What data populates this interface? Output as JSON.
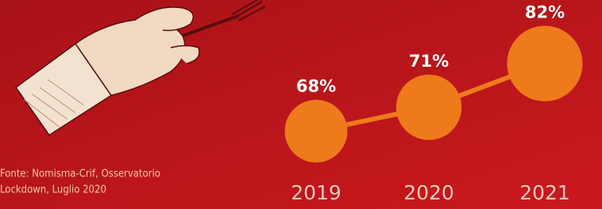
{
  "chart_data": {
    "type": "bubble",
    "categories": [
      "2019",
      "2020",
      "2021"
    ],
    "values": [
      68,
      71,
      82
    ],
    "value_labels": [
      "68%",
      "71%",
      "82%"
    ],
    "color": "#ee7a1c",
    "source": [
      "Fonte: Nomisma-Crif, Osservatorio",
      "Lockdown, Luglio 2020"
    ]
  }
}
